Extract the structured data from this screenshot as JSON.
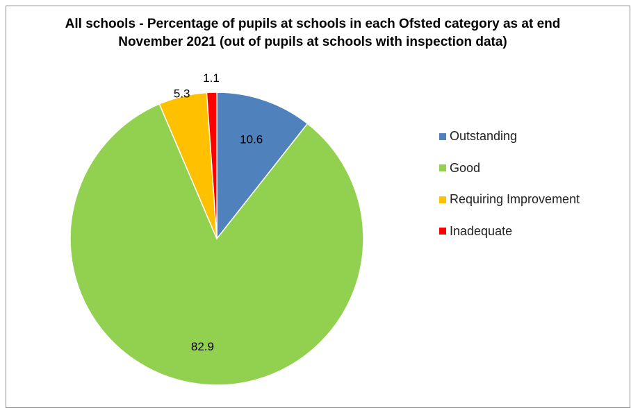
{
  "chart_data": {
    "type": "pie",
    "title": "All schools - Percentage of pupils at schools in each Ofsted category as at end November 2021 (out of pupils at schools with inspection data)",
    "slices": [
      {
        "label": "Outstanding",
        "value": 10.6,
        "display": "10.6",
        "color": "#4f81bd"
      },
      {
        "label": "Good",
        "value": 82.9,
        "display": "82.9",
        "color": "#92d050"
      },
      {
        "label": "Requiring Improvement",
        "value": 5.3,
        "display": "5.3",
        "color": "#ffc000"
      },
      {
        "label": "Inadequate",
        "value": 1.1,
        "display": "1.1",
        "color": "#ff0000"
      }
    ],
    "legend_position": "right"
  }
}
